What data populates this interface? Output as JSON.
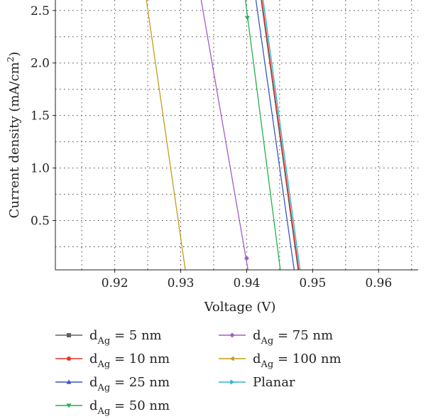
{
  "chart_data": {
    "type": "line",
    "xlabel": "Voltage (V)",
    "ylabel_main": "Current density (mA/cm",
    "ylabel_sup": "2",
    "ylabel_close": ")",
    "xlim": [
      0.911,
      0.966
    ],
    "ylim": [
      0.03,
      2.6
    ],
    "xticks": [
      0.92,
      0.93,
      0.94,
      0.95,
      0.96
    ],
    "xtick_labels": [
      "0.92",
      "0.93",
      "0.94",
      "0.95",
      "0.96"
    ],
    "yticks": [
      0.5,
      1.0,
      1.5,
      2.0,
      2.5
    ],
    "ytick_labels": [
      "0.5",
      "1.0",
      "1.5",
      "2.0",
      "2.5"
    ],
    "grid": true,
    "legend_placement": "below",
    "series": [
      {
        "legend_prefix": "d",
        "legend_sub": "Ag",
        "legend_suffix": " = 5 nm",
        "color": "#606060",
        "marker": "square",
        "x": [
          0.9422,
          0.9478
        ],
        "y": [
          2.6,
          0.03
        ],
        "marker_points": []
      },
      {
        "legend_prefix": "d",
        "legend_sub": "Ag",
        "legend_suffix": " = 10 nm",
        "color": "#e8312b",
        "marker": "circle",
        "x": [
          0.9423,
          0.9479
        ],
        "y": [
          2.6,
          0.03
        ],
        "marker_points": []
      },
      {
        "legend_prefix": "d",
        "legend_sub": "Ag",
        "legend_suffix": " = 25 nm",
        "color": "#3857c4",
        "marker": "triangle-up",
        "x": [
          0.9414,
          0.9472
        ],
        "y": [
          2.6,
          0.03
        ],
        "marker_points": []
      },
      {
        "legend_prefix": "d",
        "legend_sub": "Ag",
        "legend_suffix": " = 50 nm",
        "color": "#22b14c",
        "marker": "triangle-down",
        "x": [
          0.9398,
          0.9451
        ],
        "y": [
          2.6,
          0.03
        ],
        "marker_points": [
          [
            0.9401,
            2.43
          ]
        ]
      },
      {
        "legend_prefix": "d",
        "legend_sub": "Ag",
        "legend_suffix": " = 75 nm",
        "color": "#a05cc8",
        "marker": "diamond",
        "x": [
          0.9331,
          0.9402
        ],
        "y": [
          2.6,
          0.03
        ],
        "marker_points": [
          [
            0.94,
            0.14
          ]
        ]
      },
      {
        "legend_prefix": "d",
        "legend_sub": "Ag",
        "legend_suffix": " = 100 nm",
        "color": "#c89a1c",
        "marker": "triangle-left",
        "x": [
          0.9248,
          0.9307
        ],
        "y": [
          2.6,
          0.03
        ],
        "marker_points": []
      },
      {
        "legend_prefix": "",
        "legend_sub": "",
        "legend_suffix": "Planar",
        "color": "#2ab7c9",
        "marker": "triangle-right",
        "x": [
          0.9425,
          0.9481
        ],
        "y": [
          2.6,
          0.03
        ],
        "marker_points": []
      }
    ]
  }
}
